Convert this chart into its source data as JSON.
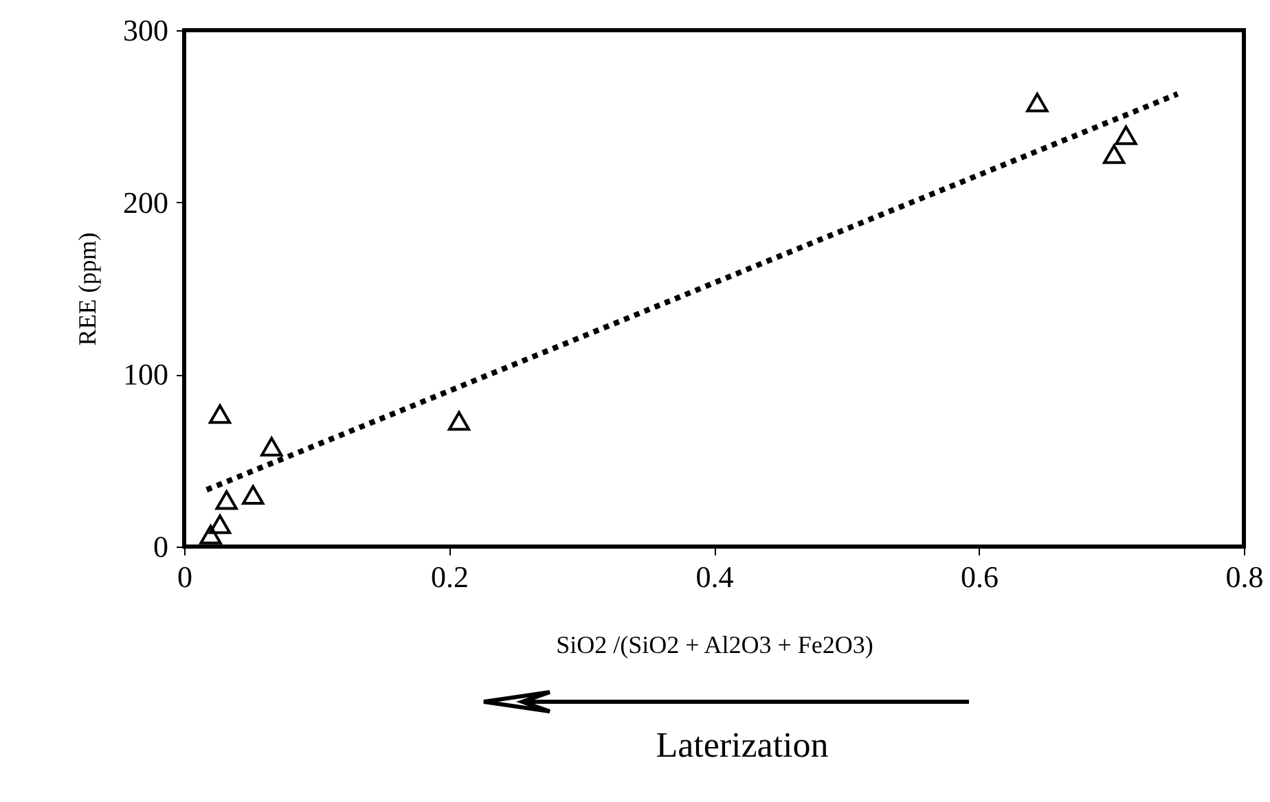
{
  "chart_data": {
    "type": "scatter",
    "xlabel": "SiO2 /(SiO2 + Al2O3 + Fe2O3)",
    "ylabel": "REE (ppm)",
    "annotations": [
      "Laterization"
    ],
    "xlim": [
      0,
      0.8
    ],
    "xticks": [
      0,
      0.2,
      0.4,
      0.6,
      0.8
    ],
    "ylim": [
      0,
      300
    ],
    "yticks": [
      0,
      100,
      200,
      300
    ],
    "grid": false,
    "series": [
      {
        "color": "#000000",
        "marker": "triangle",
        "x": [
          0.027,
          0.066,
          0.052,
          0.032,
          0.027,
          0.02,
          0.2075,
          0.644,
          0.711,
          0.702
        ],
        "values": [
          77,
          58,
          30,
          27,
          13,
          7,
          73,
          258,
          239,
          228
        ]
      },
      {
        "type": "line",
        "color": "#000000",
        "line_style": "dotted",
        "marker": "none",
        "x": [
          0.017,
          0.75
        ],
        "values": [
          33,
          263
        ]
      }
    ]
  }
}
